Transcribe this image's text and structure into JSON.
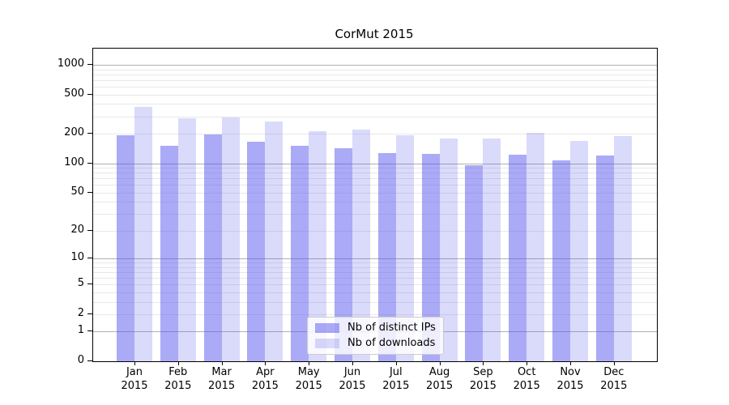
{
  "chart_data": {
    "type": "bar",
    "title": "CorMut 2015",
    "y_scale": "log1p",
    "ylim": [
      0,
      1460
    ],
    "categories": [
      "Jan",
      "Feb",
      "Mar",
      "Apr",
      "May",
      "Jun",
      "Jul",
      "Aug",
      "Sep",
      "Oct",
      "Nov",
      "Dec"
    ],
    "category_year": "2015",
    "series": [
      {
        "name": "Nb of distinct IPs",
        "color": "rgba(85,85,238,0.5)",
        "values": [
          193,
          152,
          197,
          165,
          150,
          142,
          127,
          125,
          95,
          122,
          107,
          120
        ]
      },
      {
        "name": "Nb of downloads",
        "color": "rgba(85,85,238,0.22)",
        "values": [
          375,
          285,
          290,
          265,
          210,
          222,
          192,
          180,
          178,
          206,
          170,
          188
        ]
      }
    ],
    "y_ticks": {
      "values": [
        1000,
        500,
        200,
        100,
        50,
        20,
        10,
        5,
        2,
        1,
        0
      ],
      "labels": [
        "1000",
        "500",
        "200",
        "100",
        "50",
        "20",
        "10",
        "5",
        "2",
        "1",
        "0"
      ]
    },
    "grid": {
      "axis": "y",
      "major_color": "#b0b0b0",
      "minor_color": "#e8e8e8"
    },
    "legend": {
      "position": "lower center inside"
    },
    "colors": {
      "spine": "#000000",
      "text": "#000000",
      "background": "#ffffff"
    }
  }
}
